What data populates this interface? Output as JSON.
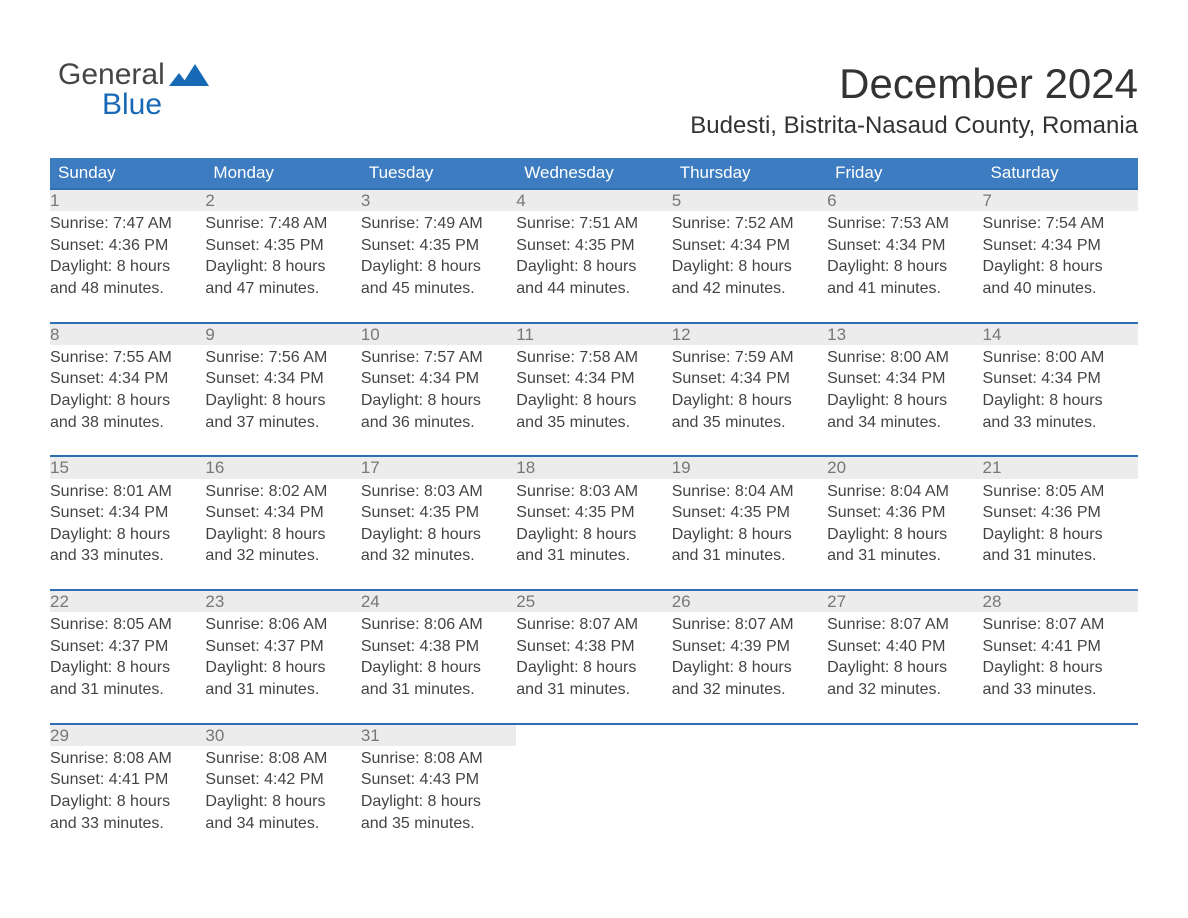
{
  "logo": {
    "word1": "General",
    "word2": "Blue"
  },
  "title": "December 2024",
  "subtitle": "Budesti, Bistrita-Nasaud County, Romania",
  "colors": {
    "header_blue": "#3d7cc0",
    "accent_blue": "#2f6eb5",
    "date_row_bg": "#ececec",
    "background": "#ffffff"
  },
  "day_headers": [
    "Sunday",
    "Monday",
    "Tuesday",
    "Wednesday",
    "Thursday",
    "Friday",
    "Saturday"
  ],
  "weeks": [
    [
      {
        "date": "1",
        "sunrise": "Sunrise: 7:47 AM",
        "sunset": "Sunset: 4:36 PM",
        "d1": "Daylight: 8 hours",
        "d2": "and 48 minutes."
      },
      {
        "date": "2",
        "sunrise": "Sunrise: 7:48 AM",
        "sunset": "Sunset: 4:35 PM",
        "d1": "Daylight: 8 hours",
        "d2": "and 47 minutes."
      },
      {
        "date": "3",
        "sunrise": "Sunrise: 7:49 AM",
        "sunset": "Sunset: 4:35 PM",
        "d1": "Daylight: 8 hours",
        "d2": "and 45 minutes."
      },
      {
        "date": "4",
        "sunrise": "Sunrise: 7:51 AM",
        "sunset": "Sunset: 4:35 PM",
        "d1": "Daylight: 8 hours",
        "d2": "and 44 minutes."
      },
      {
        "date": "5",
        "sunrise": "Sunrise: 7:52 AM",
        "sunset": "Sunset: 4:34 PM",
        "d1": "Daylight: 8 hours",
        "d2": "and 42 minutes."
      },
      {
        "date": "6",
        "sunrise": "Sunrise: 7:53 AM",
        "sunset": "Sunset: 4:34 PM",
        "d1": "Daylight: 8 hours",
        "d2": "and 41 minutes."
      },
      {
        "date": "7",
        "sunrise": "Sunrise: 7:54 AM",
        "sunset": "Sunset: 4:34 PM",
        "d1": "Daylight: 8 hours",
        "d2": "and 40 minutes."
      }
    ],
    [
      {
        "date": "8",
        "sunrise": "Sunrise: 7:55 AM",
        "sunset": "Sunset: 4:34 PM",
        "d1": "Daylight: 8 hours",
        "d2": "and 38 minutes."
      },
      {
        "date": "9",
        "sunrise": "Sunrise: 7:56 AM",
        "sunset": "Sunset: 4:34 PM",
        "d1": "Daylight: 8 hours",
        "d2": "and 37 minutes."
      },
      {
        "date": "10",
        "sunrise": "Sunrise: 7:57 AM",
        "sunset": "Sunset: 4:34 PM",
        "d1": "Daylight: 8 hours",
        "d2": "and 36 minutes."
      },
      {
        "date": "11",
        "sunrise": "Sunrise: 7:58 AM",
        "sunset": "Sunset: 4:34 PM",
        "d1": "Daylight: 8 hours",
        "d2": "and 35 minutes."
      },
      {
        "date": "12",
        "sunrise": "Sunrise: 7:59 AM",
        "sunset": "Sunset: 4:34 PM",
        "d1": "Daylight: 8 hours",
        "d2": "and 35 minutes."
      },
      {
        "date": "13",
        "sunrise": "Sunrise: 8:00 AM",
        "sunset": "Sunset: 4:34 PM",
        "d1": "Daylight: 8 hours",
        "d2": "and 34 minutes."
      },
      {
        "date": "14",
        "sunrise": "Sunrise: 8:00 AM",
        "sunset": "Sunset: 4:34 PM",
        "d1": "Daylight: 8 hours",
        "d2": "and 33 minutes."
      }
    ],
    [
      {
        "date": "15",
        "sunrise": "Sunrise: 8:01 AM",
        "sunset": "Sunset: 4:34 PM",
        "d1": "Daylight: 8 hours",
        "d2": "and 33 minutes."
      },
      {
        "date": "16",
        "sunrise": "Sunrise: 8:02 AM",
        "sunset": "Sunset: 4:34 PM",
        "d1": "Daylight: 8 hours",
        "d2": "and 32 minutes."
      },
      {
        "date": "17",
        "sunrise": "Sunrise: 8:03 AM",
        "sunset": "Sunset: 4:35 PM",
        "d1": "Daylight: 8 hours",
        "d2": "and 32 minutes."
      },
      {
        "date": "18",
        "sunrise": "Sunrise: 8:03 AM",
        "sunset": "Sunset: 4:35 PM",
        "d1": "Daylight: 8 hours",
        "d2": "and 31 minutes."
      },
      {
        "date": "19",
        "sunrise": "Sunrise: 8:04 AM",
        "sunset": "Sunset: 4:35 PM",
        "d1": "Daylight: 8 hours",
        "d2": "and 31 minutes."
      },
      {
        "date": "20",
        "sunrise": "Sunrise: 8:04 AM",
        "sunset": "Sunset: 4:36 PM",
        "d1": "Daylight: 8 hours",
        "d2": "and 31 minutes."
      },
      {
        "date": "21",
        "sunrise": "Sunrise: 8:05 AM",
        "sunset": "Sunset: 4:36 PM",
        "d1": "Daylight: 8 hours",
        "d2": "and 31 minutes."
      }
    ],
    [
      {
        "date": "22",
        "sunrise": "Sunrise: 8:05 AM",
        "sunset": "Sunset: 4:37 PM",
        "d1": "Daylight: 8 hours",
        "d2": "and 31 minutes."
      },
      {
        "date": "23",
        "sunrise": "Sunrise: 8:06 AM",
        "sunset": "Sunset: 4:37 PM",
        "d1": "Daylight: 8 hours",
        "d2": "and 31 minutes."
      },
      {
        "date": "24",
        "sunrise": "Sunrise: 8:06 AM",
        "sunset": "Sunset: 4:38 PM",
        "d1": "Daylight: 8 hours",
        "d2": "and 31 minutes."
      },
      {
        "date": "25",
        "sunrise": "Sunrise: 8:07 AM",
        "sunset": "Sunset: 4:38 PM",
        "d1": "Daylight: 8 hours",
        "d2": "and 31 minutes."
      },
      {
        "date": "26",
        "sunrise": "Sunrise: 8:07 AM",
        "sunset": "Sunset: 4:39 PM",
        "d1": "Daylight: 8 hours",
        "d2": "and 32 minutes."
      },
      {
        "date": "27",
        "sunrise": "Sunrise: 8:07 AM",
        "sunset": "Sunset: 4:40 PM",
        "d1": "Daylight: 8 hours",
        "d2": "and 32 minutes."
      },
      {
        "date": "28",
        "sunrise": "Sunrise: 8:07 AM",
        "sunset": "Sunset: 4:41 PM",
        "d1": "Daylight: 8 hours",
        "d2": "and 33 minutes."
      }
    ],
    [
      {
        "date": "29",
        "sunrise": "Sunrise: 8:08 AM",
        "sunset": "Sunset: 4:41 PM",
        "d1": "Daylight: 8 hours",
        "d2": "and 33 minutes."
      },
      {
        "date": "30",
        "sunrise": "Sunrise: 8:08 AM",
        "sunset": "Sunset: 4:42 PM",
        "d1": "Daylight: 8 hours",
        "d2": "and 34 minutes."
      },
      {
        "date": "31",
        "sunrise": "Sunrise: 8:08 AM",
        "sunset": "Sunset: 4:43 PM",
        "d1": "Daylight: 8 hours",
        "d2": "and 35 minutes."
      },
      null,
      null,
      null,
      null
    ]
  ]
}
